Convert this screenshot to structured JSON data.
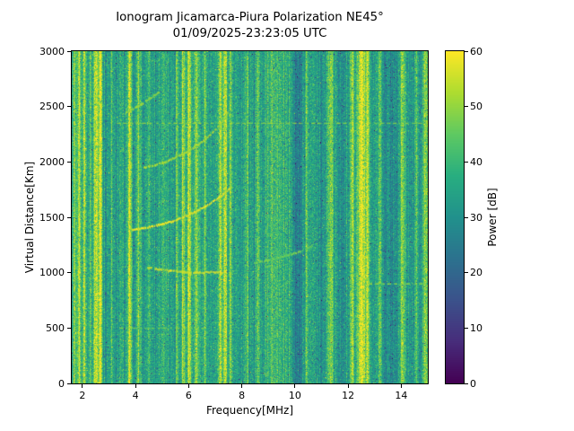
{
  "chart_data": {
    "type": "heatmap",
    "title": "Ionogram Jicamarca-Piura Polarization NE45°",
    "subtitle": "01/09/2025-23:23:05 UTC",
    "xlabel": "Frequency[MHz]",
    "ylabel": "Virtual Distance[Km]",
    "xlim": [
      1.6,
      15.0
    ],
    "ylim": [
      0,
      3000
    ],
    "xticks": [
      2,
      4,
      6,
      8,
      10,
      12,
      14
    ],
    "yticks": [
      0,
      500,
      1000,
      1500,
      2000,
      2500,
      3000
    ],
    "grid": false,
    "colorbar": {
      "label": "Power [dB]",
      "min": 0,
      "max": 60,
      "ticks": [
        0,
        10,
        20,
        30,
        40,
        50,
        60
      ],
      "colormap": "viridis",
      "position": "right",
      "stops": [
        {
          "t": 0.0,
          "hex": "#440154"
        },
        {
          "t": 0.125,
          "hex": "#472d7b"
        },
        {
          "t": 0.25,
          "hex": "#3b528b"
        },
        {
          "t": 0.375,
          "hex": "#2c728e"
        },
        {
          "t": 0.5,
          "hex": "#21918c"
        },
        {
          "t": 0.625,
          "hex": "#28ae80"
        },
        {
          "t": 0.75,
          "hex": "#5ec962"
        },
        {
          "t": 0.875,
          "hex": "#addc30"
        },
        {
          "t": 1.0,
          "hex": "#fde725"
        }
      ]
    },
    "background_noise": {
      "mean_db": 34,
      "column_sd_db": 3,
      "pixel_sd_db": 4.5,
      "dark_speckle_fraction": 0.013,
      "bright_speckle_fraction": 0.022
    },
    "rfi_bands": [
      {
        "freq": 1.7,
        "width": 0.04,
        "power_db": 50
      },
      {
        "freq": 1.88,
        "width": 0.05,
        "power_db": 58
      },
      {
        "freq": 2.08,
        "width": 0.05,
        "power_db": 57
      },
      {
        "freq": 2.3,
        "width": 0.04,
        "power_db": 47
      },
      {
        "freq": 2.52,
        "width": 0.08,
        "power_db": 59
      },
      {
        "freq": 2.68,
        "width": 0.05,
        "power_db": 56
      },
      {
        "freq": 3.1,
        "width": 0.04,
        "power_db": 44
      },
      {
        "freq": 3.42,
        "width": 0.04,
        "power_db": 43
      },
      {
        "freq": 3.78,
        "width": 0.05,
        "power_db": 57
      },
      {
        "freq": 4.12,
        "width": 0.05,
        "power_db": 48
      },
      {
        "freq": 4.5,
        "width": 0.04,
        "power_db": 44
      },
      {
        "freq": 5.05,
        "width": 0.04,
        "power_db": 44
      },
      {
        "freq": 5.55,
        "width": 0.04,
        "power_db": 45
      },
      {
        "freq": 5.8,
        "width": 0.05,
        "power_db": 52
      },
      {
        "freq": 6.02,
        "width": 0.05,
        "power_db": 56
      },
      {
        "freq": 6.28,
        "width": 0.05,
        "power_db": 52
      },
      {
        "freq": 6.6,
        "width": 0.04,
        "power_db": 45
      },
      {
        "freq": 7.18,
        "width": 0.05,
        "power_db": 56
      },
      {
        "freq": 7.38,
        "width": 0.06,
        "power_db": 57
      },
      {
        "freq": 7.58,
        "width": 0.04,
        "power_db": 50
      },
      {
        "freq": 8.2,
        "width": 0.04,
        "power_db": 46
      },
      {
        "freq": 8.6,
        "width": 0.05,
        "power_db": 47
      },
      {
        "freq": 9.3,
        "width": 0.3,
        "power_db": 41
      },
      {
        "freq": 10.45,
        "width": 0.04,
        "power_db": 45
      },
      {
        "freq": 11.35,
        "width": 0.07,
        "power_db": 50
      },
      {
        "freq": 12.15,
        "width": 0.05,
        "power_db": 52
      },
      {
        "freq": 12.52,
        "width": 0.1,
        "power_db": 59
      },
      {
        "freq": 12.72,
        "width": 0.05,
        "power_db": 54
      },
      {
        "freq": 13.2,
        "width": 0.05,
        "power_db": 48
      },
      {
        "freq": 14.05,
        "width": 0.06,
        "power_db": 50
      },
      {
        "freq": 14.55,
        "width": 0.04,
        "power_db": 46
      },
      {
        "freq": 14.9,
        "width": 0.05,
        "power_db": 51
      }
    ],
    "dark_bands": [
      {
        "freq": 10.08,
        "width": 0.15,
        "drop_db": 8
      },
      {
        "freq": 10.9,
        "width": 0.12,
        "drop_db": 4
      },
      {
        "freq": 11.8,
        "width": 0.1,
        "drop_db": 4
      },
      {
        "freq": 13.6,
        "width": 0.16,
        "drop_db": 5
      },
      {
        "freq": 14.4,
        "width": 0.08,
        "drop_db": 4
      }
    ],
    "echo_traces": [
      {
        "name": "f-layer-main",
        "power_db": 58,
        "points": [
          [
            3.85,
            1390
          ],
          [
            4.6,
            1415
          ],
          [
            5.4,
            1465
          ],
          [
            6.2,
            1545
          ],
          [
            6.9,
            1640
          ],
          [
            7.55,
            1760
          ]
        ]
      },
      {
        "name": "f-layer-upper",
        "power_db": 52,
        "points": [
          [
            4.3,
            1945
          ],
          [
            5.1,
            2000
          ],
          [
            5.9,
            2085
          ],
          [
            6.6,
            2200
          ],
          [
            7.15,
            2330
          ],
          [
            7.45,
            2440
          ]
        ]
      },
      {
        "name": "upper-short",
        "power_db": 50,
        "points": [
          [
            3.6,
            2440
          ],
          [
            4.2,
            2520
          ],
          [
            4.85,
            2625
          ]
        ]
      },
      {
        "name": "e-layer",
        "power_db": 56,
        "points": [
          [
            4.45,
            1045
          ],
          [
            5.3,
            1015
          ],
          [
            6.2,
            1000
          ],
          [
            7.35,
            1005
          ]
        ]
      },
      {
        "name": "right-faint",
        "power_db": 46,
        "points": [
          [
            8.45,
            1085
          ],
          [
            9.4,
            1135
          ],
          [
            10.1,
            1185
          ],
          [
            10.65,
            1245
          ]
        ]
      }
    ],
    "dashed_lines": [
      {
        "km": 2350,
        "from_mhz": 3.3,
        "to_mhz": 15.0,
        "power_db": 50
      },
      {
        "km": 500,
        "from_mhz": 3.4,
        "to_mhz": 6.6,
        "power_db": 48
      },
      {
        "km": 900,
        "from_mhz": 12.3,
        "to_mhz": 15.0,
        "power_db": 48
      }
    ],
    "colors": {
      "figure_background": "#ffffff",
      "axes_edge": "#000000",
      "text": "#000000"
    }
  }
}
